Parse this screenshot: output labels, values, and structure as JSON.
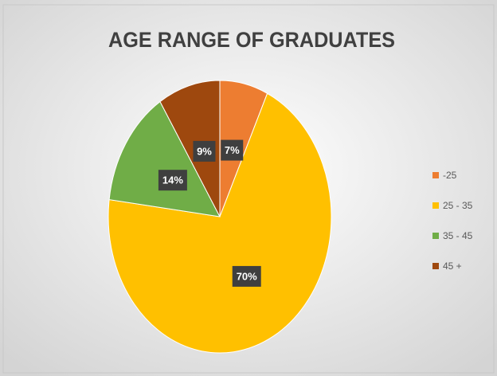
{
  "chart_data": {
    "type": "pie",
    "title": "AGE RANGE OF GRADUATES",
    "categories": [
      "-25",
      "25 - 35",
      "35 - 45",
      "45 +"
    ],
    "values": [
      7,
      70,
      14,
      9
    ],
    "value_labels": [
      "7%",
      "70%",
      "14%",
      "9%"
    ],
    "colors": [
      "#ed7d31",
      "#ffc000",
      "#70ad47",
      "#9e480e"
    ],
    "legend": "right"
  }
}
